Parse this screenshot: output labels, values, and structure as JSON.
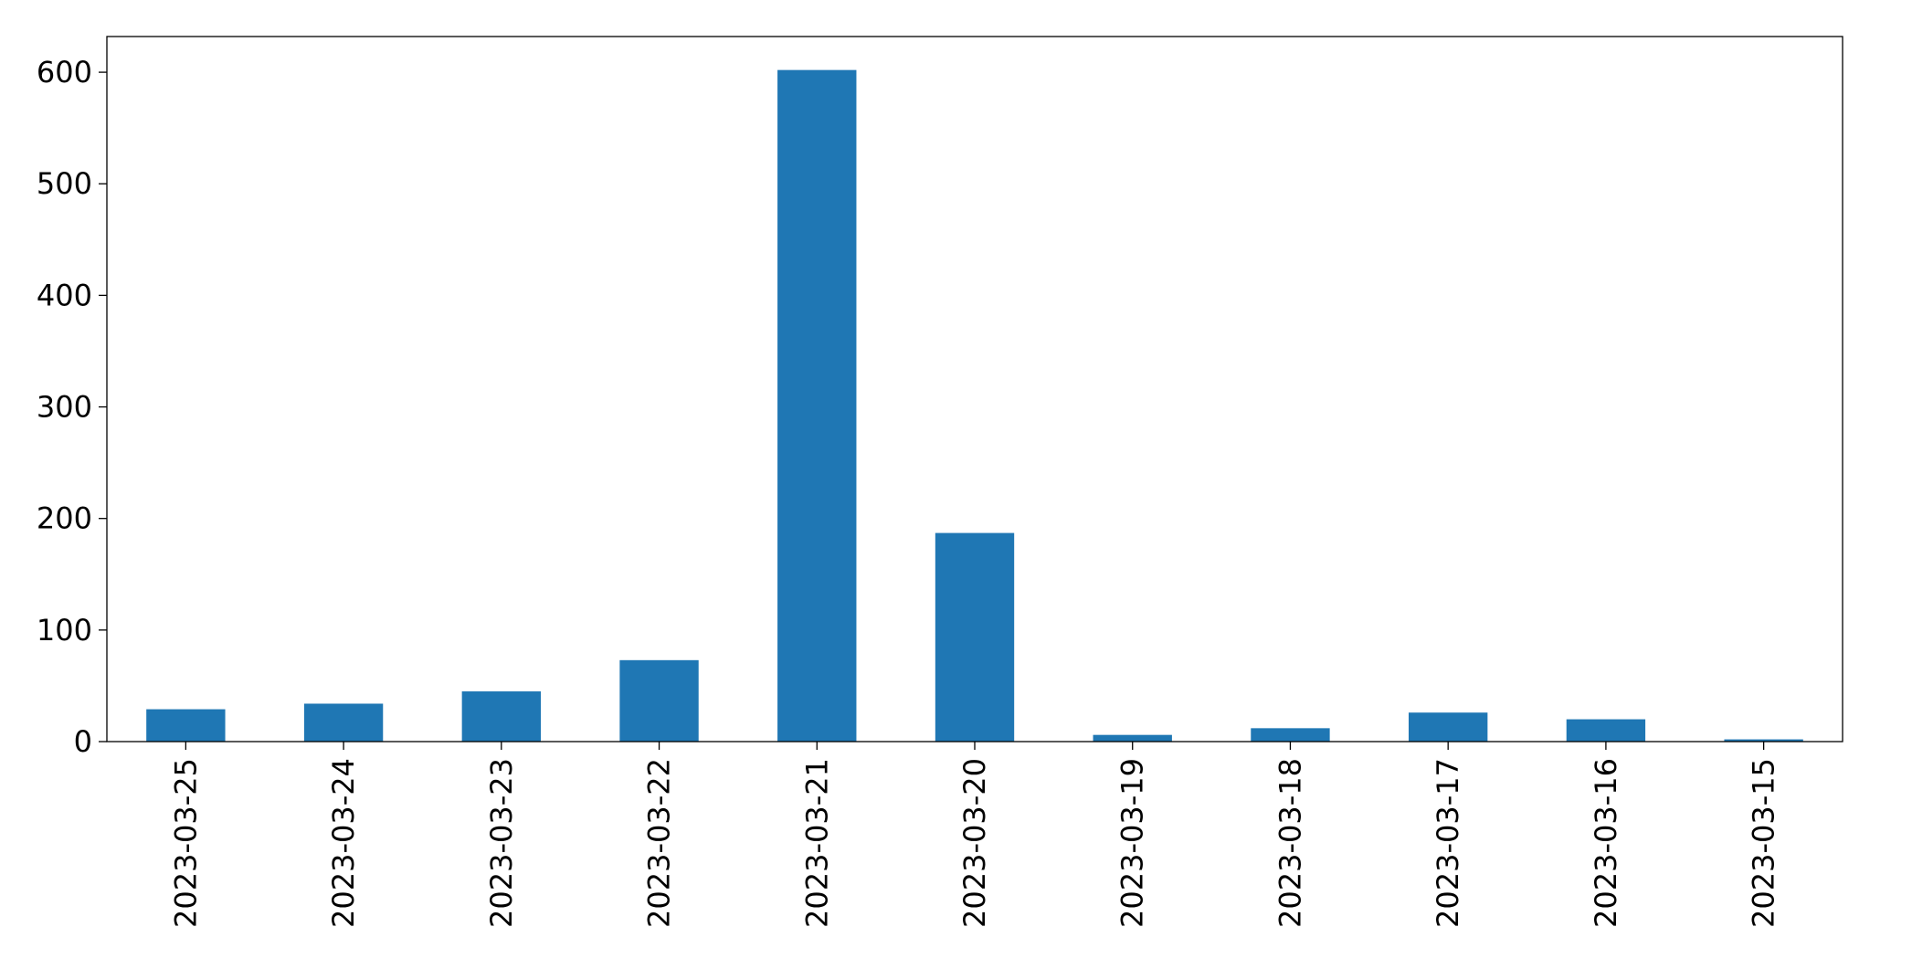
{
  "chart_data": {
    "type": "bar",
    "categories": [
      "2023-03-25",
      "2023-03-24",
      "2023-03-23",
      "2023-03-22",
      "2023-03-21",
      "2023-03-20",
      "2023-03-19",
      "2023-03-18",
      "2023-03-17",
      "2023-03-16",
      "2023-03-15"
    ],
    "values": [
      29,
      34,
      45,
      73,
      602,
      187,
      6,
      12,
      26,
      20,
      2
    ],
    "title": "",
    "xlabel": "",
    "ylabel": "",
    "ylim": [
      0,
      632
    ],
    "yticks": [
      0,
      100,
      200,
      300,
      400,
      500,
      600
    ],
    "grid": false,
    "legend": "none",
    "bar_color": "#1f77b4",
    "axis_color": "#000000"
  }
}
